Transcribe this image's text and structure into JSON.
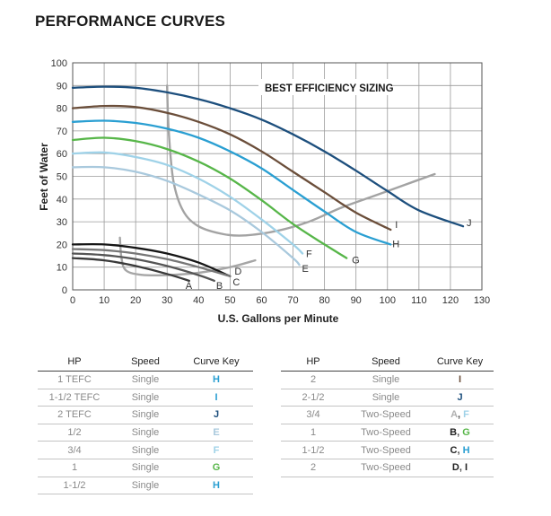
{
  "page_title": "PERFORMANCE CURVES",
  "chart_data": {
    "type": "line",
    "title": "PERFORMANCE CURVES",
    "annotation": "BEST EFFICIENCY SIZING",
    "xlabel": "U.S. Gallons per Minute",
    "ylabel": "Feet of Water",
    "xlim": [
      0,
      130
    ],
    "ylim": [
      0,
      100
    ],
    "xticks": [
      "0",
      "10",
      "20",
      "30",
      "40",
      "50",
      "60",
      "70",
      "80",
      "90",
      "100",
      "110",
      "120",
      "130"
    ],
    "yticks": [
      "0",
      "10",
      "20",
      "30",
      "40",
      "50",
      "60",
      "70",
      "80",
      "90",
      "100"
    ],
    "grid": true,
    "series": [
      {
        "name": "A",
        "color": "#3a3a3a",
        "points": [
          [
            0,
            14
          ],
          [
            10,
            13
          ],
          [
            20,
            10.5
          ],
          [
            30,
            7
          ],
          [
            37,
            4
          ]
        ]
      },
      {
        "name": "B",
        "color": "#555555",
        "points": [
          [
            0,
            16
          ],
          [
            10,
            15.3
          ],
          [
            20,
            13.5
          ],
          [
            30,
            10.5
          ],
          [
            40,
            6.5
          ],
          [
            45,
            4
          ]
        ]
      },
      {
        "name": "C",
        "color": "#161616",
        "points": [
          [
            0,
            20
          ],
          [
            10,
            20
          ],
          [
            20,
            18.5
          ],
          [
            30,
            16
          ],
          [
            40,
            12
          ],
          [
            50,
            6
          ]
        ]
      },
      {
        "name": "D",
        "color": "#777777",
        "points": [
          [
            0,
            18
          ],
          [
            10,
            17.5
          ],
          [
            20,
            16
          ],
          [
            30,
            13.5
          ],
          [
            40,
            10
          ],
          [
            50,
            6
          ]
        ]
      },
      {
        "name": "E",
        "color": "#a9c9dd",
        "points": [
          [
            0,
            54
          ],
          [
            10,
            54
          ],
          [
            20,
            52
          ],
          [
            30,
            48
          ],
          [
            40,
            42
          ],
          [
            50,
            35
          ],
          [
            60,
            25.5
          ],
          [
            70,
            14
          ],
          [
            72,
            11
          ]
        ]
      },
      {
        "name": "F",
        "color": "#9fd2e8",
        "points": [
          [
            0,
            60
          ],
          [
            10,
            60.5
          ],
          [
            20,
            58.5
          ],
          [
            30,
            55
          ],
          [
            40,
            49
          ],
          [
            50,
            41
          ],
          [
            60,
            31
          ],
          [
            70,
            20
          ],
          [
            73,
            16
          ]
        ]
      },
      {
        "name": "G",
        "color": "#57b649",
        "points": [
          [
            0,
            66
          ],
          [
            10,
            67
          ],
          [
            20,
            65.5
          ],
          [
            30,
            62
          ],
          [
            40,
            56.5
          ],
          [
            50,
            49
          ],
          [
            60,
            39.5
          ],
          [
            70,
            29
          ],
          [
            80,
            20
          ],
          [
            87,
            14
          ]
        ]
      },
      {
        "name": "H",
        "color": "#2a9fd2",
        "points": [
          [
            0,
            74
          ],
          [
            10,
            74.5
          ],
          [
            20,
            73.5
          ],
          [
            30,
            71
          ],
          [
            40,
            67
          ],
          [
            50,
            61
          ],
          [
            60,
            53.5
          ],
          [
            70,
            44
          ],
          [
            80,
            34.5
          ],
          [
            90,
            25.5
          ],
          [
            101,
            20
          ]
        ]
      },
      {
        "name": "I",
        "color": "#6b4e3a",
        "points": [
          [
            0,
            80
          ],
          [
            10,
            81
          ],
          [
            20,
            80.5
          ],
          [
            30,
            78
          ],
          [
            40,
            74
          ],
          [
            50,
            68.5
          ],
          [
            60,
            61
          ],
          [
            70,
            52
          ],
          [
            80,
            43
          ],
          [
            90,
            34
          ],
          [
            101,
            26.5
          ]
        ]
      },
      {
        "name": "J",
        "color": "#1d4f7d",
        "points": [
          [
            0,
            89
          ],
          [
            10,
            89.5
          ],
          [
            20,
            89
          ],
          [
            30,
            87
          ],
          [
            40,
            84
          ],
          [
            50,
            80
          ],
          [
            60,
            75
          ],
          [
            70,
            68.5
          ],
          [
            80,
            61
          ],
          [
            90,
            52.5
          ],
          [
            100,
            43.5
          ],
          [
            110,
            35
          ],
          [
            124,
            28
          ]
        ]
      }
    ],
    "efficiency_bands": [
      {
        "color": "#a3a3a3",
        "points": [
          [
            30,
            90
          ],
          [
            30.5,
            70
          ],
          [
            32,
            48
          ],
          [
            35,
            35
          ],
          [
            40,
            28
          ],
          [
            48,
            24.5
          ],
          [
            55,
            24
          ],
          [
            65,
            26
          ],
          [
            75,
            30
          ],
          [
            85,
            36
          ],
          [
            95,
            41
          ],
          [
            105,
            46
          ],
          [
            115,
            51
          ]
        ]
      },
      {
        "color": "#a6a6a6",
        "points": [
          [
            15,
            23
          ],
          [
            15.5,
            14
          ],
          [
            17,
            8.5
          ],
          [
            22,
            6.6
          ],
          [
            30,
            6.5
          ],
          [
            40,
            7.5
          ],
          [
            50,
            10
          ],
          [
            58,
            13
          ]
        ]
      }
    ]
  },
  "tables": {
    "left": {
      "headers": [
        "HP",
        "Speed",
        "Curve Key"
      ],
      "rows": [
        {
          "hp": "1 TEFC",
          "speed": "Single",
          "keys": [
            {
              "text": "H",
              "color": "#2a9fd2"
            }
          ]
        },
        {
          "hp": "1-1/2 TEFC",
          "speed": "Single",
          "keys": [
            {
              "text": "I",
              "color": "#2a9fd2"
            }
          ]
        },
        {
          "hp": "2 TEFC",
          "speed": "Single",
          "keys": [
            {
              "text": "J",
              "color": "#1d4f7d"
            }
          ]
        },
        {
          "hp": "1/2",
          "speed": "Single",
          "keys": [
            {
              "text": "E",
              "color": "#a9c9dd"
            }
          ]
        },
        {
          "hp": "3/4",
          "speed": "Single",
          "keys": [
            {
              "text": "F",
              "color": "#9fd2e8"
            }
          ]
        },
        {
          "hp": "1",
          "speed": "Single",
          "keys": [
            {
              "text": "G",
              "color": "#57b649"
            }
          ]
        },
        {
          "hp": "1-1/2",
          "speed": "Single",
          "keys": [
            {
              "text": "H",
              "color": "#2a9fd2"
            }
          ]
        }
      ]
    },
    "right": {
      "headers": [
        "HP",
        "Speed",
        "Curve Key"
      ],
      "rows": [
        {
          "hp": "2",
          "speed": "Single",
          "keys": [
            {
              "text": "I",
              "color": "#6b4e3a"
            }
          ]
        },
        {
          "hp": "2-1/2",
          "speed": "Single",
          "keys": [
            {
              "text": "J",
              "color": "#1d4f7d"
            }
          ]
        },
        {
          "hp": "3/4",
          "speed": "Two-Speed",
          "keys": [
            {
              "text": "A",
              "color": "#b0b0b0"
            },
            {
              "text": "F",
              "color": "#9fd2e8"
            }
          ]
        },
        {
          "hp": "1",
          "speed": "Two-Speed",
          "keys": [
            {
              "text": "B",
              "color": "#222222"
            },
            {
              "text": "G",
              "color": "#57b649"
            }
          ]
        },
        {
          "hp": "1-1/2",
          "speed": "Two-Speed",
          "keys": [
            {
              "text": "C",
              "color": "#222222"
            },
            {
              "text": "H",
              "color": "#2a9fd2"
            }
          ]
        },
        {
          "hp": "2",
          "speed": "Two-Speed",
          "keys": [
            {
              "text": "D",
              "color": "#222222"
            },
            {
              "text": "I",
              "color": "#222222"
            }
          ]
        }
      ]
    }
  }
}
